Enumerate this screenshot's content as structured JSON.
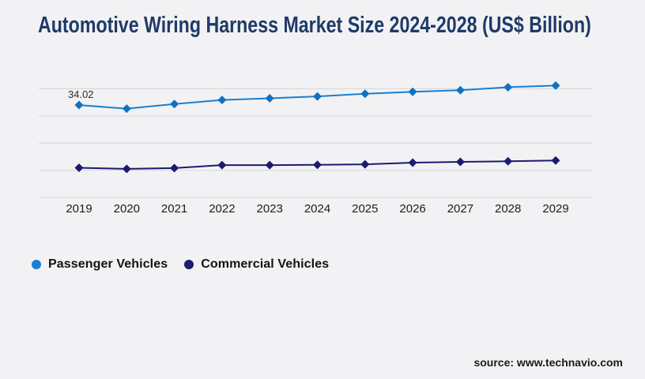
{
  "title": "Automotive Wiring Harness Market Size 2024-2028 (US$ Billion)",
  "source_note": "source: www.technavio.com",
  "colors": {
    "background": "#f2f2f4",
    "title": "#1e3a68",
    "axis_text": "#1c1c1c",
    "gridline": "#d6d6d9",
    "passenger_blue": "#1a7fd0",
    "commercial_navy": "#1b1b70"
  },
  "chart_data": {
    "type": "line",
    "title": "Automotive Wiring Harness Market Size 2024-2028 (US$ Billion)",
    "categories": [
      "2019",
      "2020",
      "2021",
      "2022",
      "2023",
      "2024",
      "2025",
      "2026",
      "2027",
      "2028",
      "2029"
    ],
    "series": [
      {
        "name": "Passenger Vehicles",
        "line_color": "#1a7fd0",
        "marker_color": "#1171c1",
        "marker": "diamond",
        "values": [
          34.02,
          32.7,
          34.4,
          35.9,
          36.5,
          37.2,
          38.2,
          38.9,
          39.5,
          40.6,
          41.2
        ],
        "data_labels": [
          {
            "index": 0,
            "text": "34.02"
          }
        ]
      },
      {
        "name": "Commercial Vehicles",
        "line_color": "#1b1b70",
        "marker_color": "#1b1b70",
        "marker": "diamond",
        "values": [
          10.9,
          10.5,
          10.8,
          11.9,
          11.9,
          12.0,
          12.2,
          12.8,
          13.1,
          13.3,
          13.6
        ]
      }
    ],
    "ylim": [
      0,
      48
    ],
    "gridline_values": [
      0,
      10,
      20,
      30,
      40
    ],
    "y_axis_labels_visible": false,
    "grid": "horizontal",
    "legend_position": "bottom-left"
  }
}
